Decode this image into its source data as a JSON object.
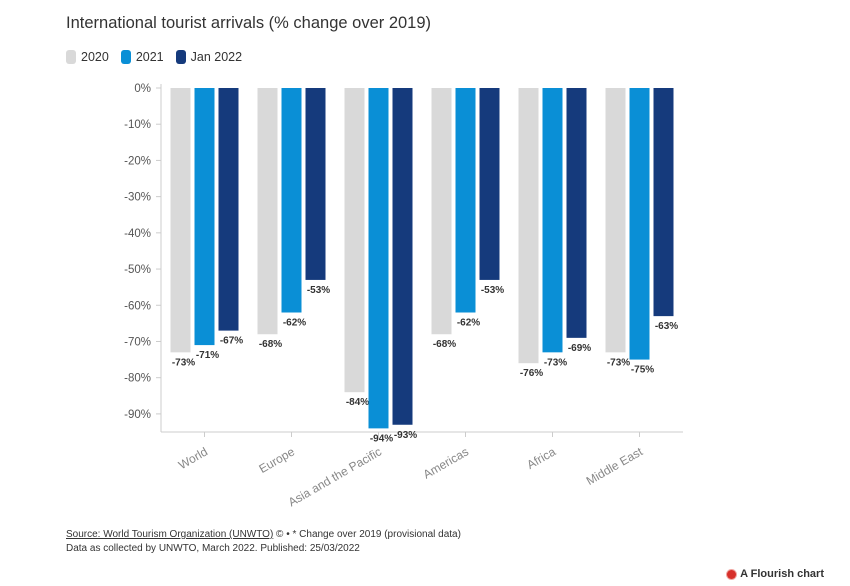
{
  "chart_data": {
    "type": "bar",
    "title": "International tourist arrivals (% change over 2019)",
    "categories": [
      "World",
      "Europe",
      "Asia and the Pacific",
      "Americas",
      "Africa",
      "Middle East"
    ],
    "series": [
      {
        "name": "2020",
        "color": "#d9d9d9",
        "values": [
          -73,
          -68,
          -84,
          -68,
          -76,
          -73
        ]
      },
      {
        "name": "2021",
        "color": "#0a8fd6",
        "values": [
          -71,
          -62,
          -94,
          -62,
          -73,
          -75
        ]
      },
      {
        "name": "Jan 2022",
        "color": "#153a7c",
        "values": [
          -67,
          -53,
          -93,
          -53,
          -69,
          -63
        ]
      }
    ],
    "ylim": [
      -95,
      0
    ],
    "yticks": [
      0,
      -10,
      -20,
      -30,
      -40,
      -50,
      -60,
      -70,
      -80,
      -90
    ],
    "ytick_suffix": "%",
    "data_label_suffix": "%",
    "legend_position": "top-left",
    "grid": false
  },
  "footer": {
    "source_link": "Source: World Tourism Organization (UNWTO)",
    "source_rest": " © • * Change over 2019 (provisional data)",
    "line2": "Data as collected by UNWTO, March 2022. Published: 25/03/2022"
  },
  "credit": "A Flourish chart"
}
